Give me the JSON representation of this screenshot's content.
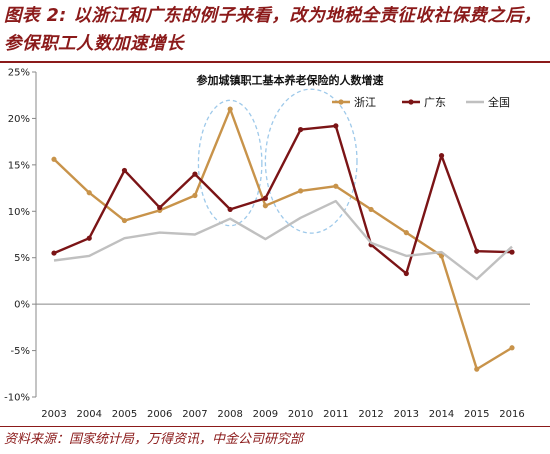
{
  "header": {
    "title": "图表 2: 以浙江和广东的例子来看，改为地税全责征收社保费之后，参保职工人数加速增长"
  },
  "footer": {
    "source": "资料来源：国家统计局，万得资讯，中金公司研究部"
  },
  "chart_data": {
    "type": "line",
    "title": "参加城镇职工基本养老保险的人数增速",
    "xlabel": "",
    "ylabel": "",
    "categories": [
      "2003",
      "2004",
      "2005",
      "2006",
      "2007",
      "2008",
      "2009",
      "2010",
      "2011",
      "2012",
      "2013",
      "2014",
      "2015",
      "2016"
    ],
    "ylim": [
      -10,
      25
    ],
    "yticks": [
      -10,
      -5,
      0,
      5,
      10,
      15,
      20,
      25
    ],
    "ytick_labels": [
      "-10%",
      "-5%",
      "0%",
      "5%",
      "10%",
      "15%",
      "20%",
      "25%"
    ],
    "grid": false,
    "legend_position": "top-right",
    "series": [
      {
        "name": "浙江",
        "color": "#c8934a",
        "values": [
          15.6,
          12.0,
          9.0,
          10.1,
          11.7,
          21.0,
          10.6,
          12.2,
          12.7,
          10.2,
          7.7,
          5.2,
          -7.0,
          -4.7
        ]
      },
      {
        "name": "广东",
        "color": "#7b1416",
        "values": [
          5.5,
          7.1,
          14.4,
          10.4,
          14.0,
          10.2,
          11.4,
          18.8,
          19.2,
          6.4,
          3.3,
          16.0,
          5.7,
          5.6
        ]
      },
      {
        "name": "全国",
        "color": "#c0c0c0",
        "values": [
          4.7,
          5.2,
          7.1,
          7.7,
          7.5,
          9.2,
          7.0,
          9.3,
          11.1,
          6.6,
          5.2,
          5.6,
          2.7,
          6.2
        ]
      }
    ],
    "annotations": [
      {
        "shape": "ellipse",
        "style": "dashed",
        "color": "#9ec9ea",
        "center_year": 2008,
        "center_value": 15.2,
        "span_years": 1.8,
        "span_value": 13.5
      },
      {
        "shape": "ellipse",
        "style": "dashed",
        "color": "#9ec9ea",
        "center_year": 2010.3,
        "center_value": 15.4,
        "span_years": 2.6,
        "span_value": 15.5
      }
    ]
  }
}
